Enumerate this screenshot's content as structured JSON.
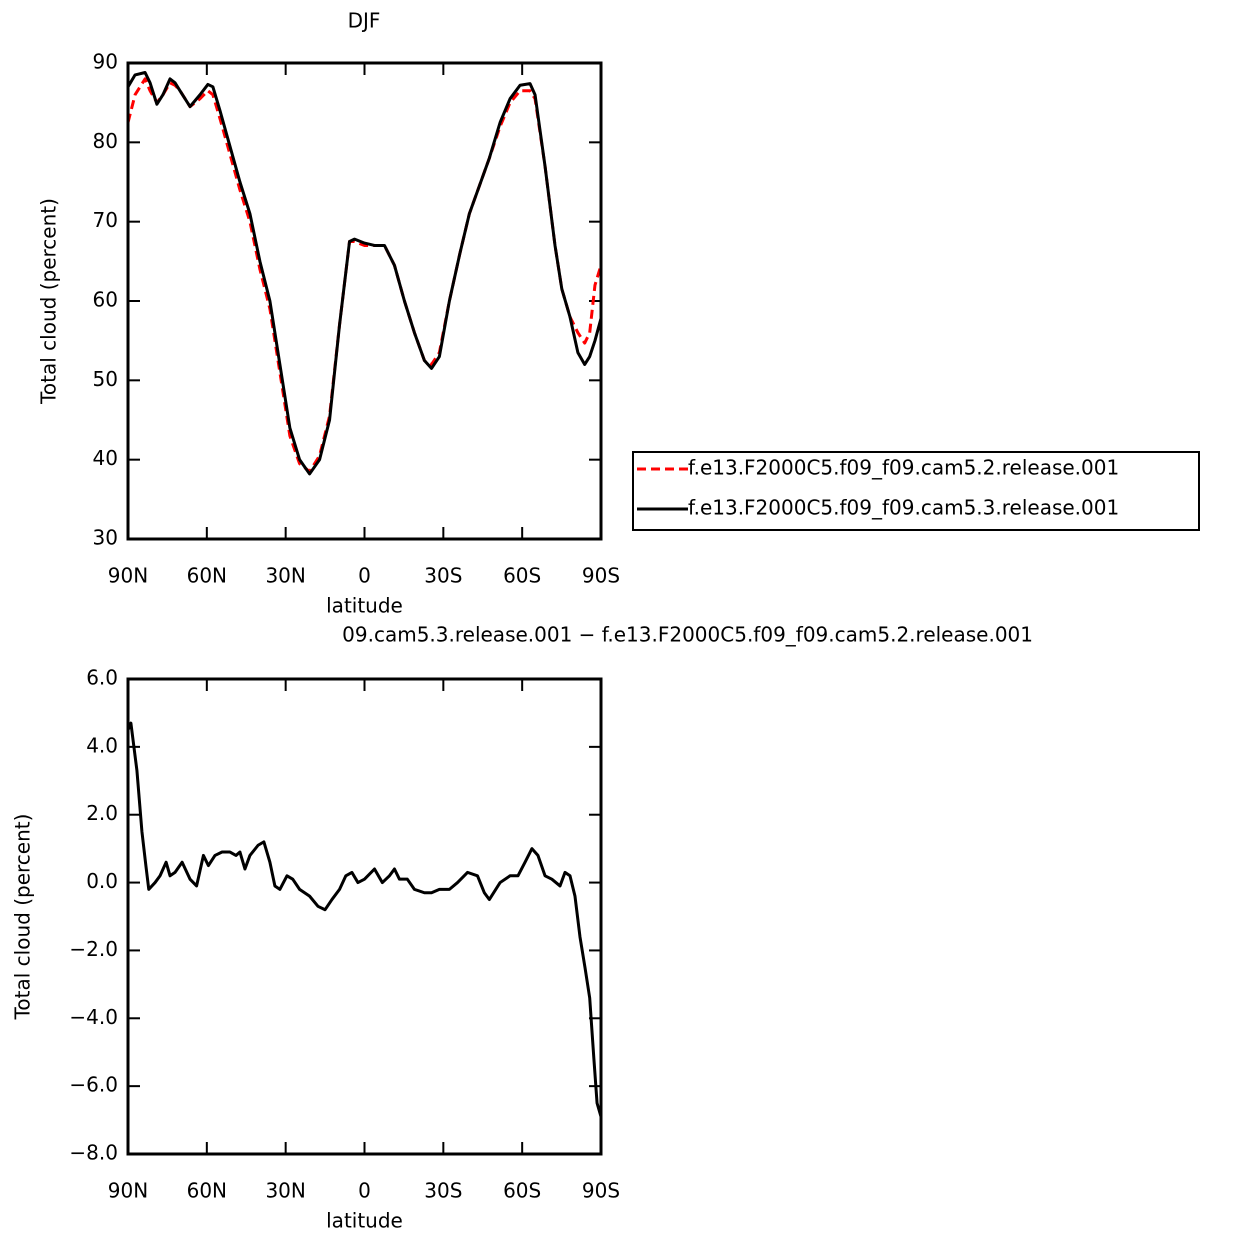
{
  "chart_data": [
    {
      "type": "line",
      "title": "DJF",
      "xlabel": "latitude",
      "ylabel": "Total cloud (percent)",
      "x": [
        90,
        87.3,
        83.5,
        81.6,
        79,
        76.7,
        74,
        72.1,
        70.2,
        66.4,
        62.6,
        59.6,
        57.7,
        55,
        51.2,
        47.4,
        43.6,
        39.8,
        36,
        32.2,
        28.4,
        24.7,
        20.9,
        17.1,
        13.3,
        9.5,
        5.7,
        3.8,
        0,
        -3.8,
        -7.6,
        -11.4,
        -15.2,
        -19,
        -22.8,
        -25.5,
        -28.5,
        -32.3,
        -36.3,
        -39.9,
        -43.7,
        -47.5,
        -51.6,
        -55.4,
        -59.2,
        -63,
        -64.9,
        -68.7,
        -72.5,
        -75.1,
        -78.2,
        -81.2,
        -83.8,
        -85.7,
        -87.7,
        -90
      ],
      "series": [
        {
          "name": "f.e13.F2000C5.f09_f09.cam5.2.release.001",
          "color": "#ff0000",
          "style": "dashed",
          "values": [
            82.5,
            86,
            88,
            86.5,
            85,
            86,
            87.5,
            87.2,
            86.5,
            84.5,
            85.5,
            86.5,
            86,
            83,
            78.5,
            74,
            70,
            64,
            59,
            51,
            43,
            39.5,
            38.5,
            40.5,
            45.5,
            57,
            67.5,
            67.5,
            67,
            67,
            67,
            64.5,
            60,
            56,
            52.5,
            52,
            53.5,
            60,
            66,
            71,
            74.5,
            78,
            82,
            85,
            86.5,
            86.5,
            85.5,
            77,
            67,
            61.5,
            58,
            56,
            54.7,
            56,
            62,
            64.5
          ]
        },
        {
          "name": "f.e13.F2000C5.f09_f09.cam5.3.release.001",
          "color": "#000000",
          "style": "solid",
          "values": [
            87,
            88.5,
            88.8,
            87.5,
            84.8,
            86,
            88,
            87.5,
            86.5,
            84.5,
            86,
            87.3,
            87,
            84,
            79.5,
            75,
            71,
            65,
            60,
            52,
            44,
            40,
            38.2,
            40,
            45,
            57,
            67.5,
            67.8,
            67.3,
            67,
            67,
            64.5,
            60,
            56,
            52.5,
            51.5,
            53,
            60,
            66,
            71,
            74.5,
            78,
            82.5,
            85.5,
            87.2,
            87.4,
            86,
            77,
            67,
            61.5,
            58,
            53.5,
            52,
            53,
            55,
            57.8
          ]
        }
      ],
      "xlim": [
        90,
        -90
      ],
      "xticks": [
        {
          "value": 90,
          "label": "90N"
        },
        {
          "value": 60,
          "label": "60N"
        },
        {
          "value": 30,
          "label": "30N"
        },
        0,
        {
          "value": -30,
          "label": "30S"
        },
        {
          "value": -60,
          "label": "60S"
        },
        {
          "value": -90,
          "label": "90S"
        }
      ],
      "ylim": [
        30,
        90
      ],
      "yticks": [
        30,
        40,
        50,
        60,
        70,
        80,
        90
      ],
      "legend": "right"
    },
    {
      "type": "line",
      "title": "09.cam5.3.release.001 − f.e13.F2000C5.f09_f09.cam5.2.release.001",
      "xlabel": "latitude",
      "ylabel": "Total cloud (percent)",
      "x": [
        90,
        88.9,
        86.6,
        84.7,
        83.2,
        82.1,
        79.7,
        77.8,
        75.5,
        74,
        72.1,
        69.4,
        66.4,
        63.9,
        61.3,
        59.4,
        56.9,
        54.2,
        51.2,
        48.9,
        47.4,
        45.5,
        43.6,
        40.5,
        38.3,
        36,
        34.1,
        32.2,
        29.5,
        27.3,
        24.7,
        20.9,
        17.7,
        15,
        12.4,
        9.5,
        7.1,
        4.8,
        2.5,
        0,
        -3.8,
        -6.8,
        -9.5,
        -11.4,
        -13.3,
        -16.3,
        -19,
        -22.8,
        -25.5,
        -28.5,
        -32.3,
        -35.4,
        -39.2,
        -43,
        -45.6,
        -47.5,
        -51.6,
        -55.4,
        -58.4,
        -61.1,
        -63.7,
        -66,
        -68.7,
        -71.3,
        -74.4,
        -76.3,
        -78.2,
        -80.1,
        -82,
        -83.9,
        -85.7,
        -87.3,
        -88.5,
        -90
      ],
      "values": [
        4.5,
        4.7,
        3.3,
        1.5,
        0.5,
        -0.2,
        0,
        0.2,
        0.6,
        0.2,
        0.3,
        0.6,
        0.1,
        -0.1,
        0.8,
        0.5,
        0.8,
        0.9,
        0.9,
        0.8,
        0.9,
        0.4,
        0.8,
        1.1,
        1.2,
        0.6,
        -0.1,
        -0.2,
        0.2,
        0.1,
        -0.2,
        -0.4,
        -0.7,
        -0.8,
        -0.5,
        -0.2,
        0.2,
        0.3,
        0,
        0.1,
        0.4,
        0,
        0.2,
        0.4,
        0.1,
        0.1,
        -0.2,
        -0.3,
        -0.3,
        -0.2,
        -0.2,
        0,
        0.3,
        0.2,
        -0.3,
        -0.5,
        0,
        0.2,
        0.2,
        0.6,
        1,
        0.8,
        0.2,
        0.1,
        -0.1,
        0.3,
        0.2,
        -0.4,
        -1.6,
        -2.5,
        -3.4,
        -5.2,
        -6.5,
        -6.9
      ],
      "color": "#000000",
      "style": "solid",
      "xlim": [
        90,
        -90
      ],
      "xticks": [
        {
          "value": 90,
          "label": "90N"
        },
        {
          "value": 60,
          "label": "60N"
        },
        {
          "value": 30,
          "label": "30N"
        },
        0,
        {
          "value": -30,
          "label": "30S"
        },
        {
          "value": -60,
          "label": "60S"
        },
        {
          "value": -90,
          "label": "90S"
        }
      ],
      "ylim": [
        -8,
        6
      ],
      "yticks": [
        {
          "value": -8,
          "label": "−8.0"
        },
        {
          "value": -6,
          "label": "−6.0"
        },
        {
          "value": -4,
          "label": "−4.0"
        },
        {
          "value": -2,
          "label": "−2.0"
        },
        {
          "value": 0,
          "label": "0.0"
        },
        {
          "value": 2,
          "label": "2.0"
        },
        {
          "value": 4,
          "label": "4.0"
        },
        {
          "value": 6,
          "label": "6.0"
        }
      ]
    }
  ]
}
